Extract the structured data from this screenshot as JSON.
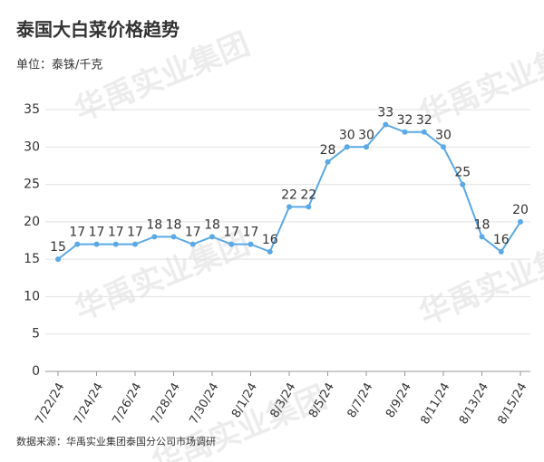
{
  "chart_data": {
    "type": "line",
    "title": "泰国大白菜价格趋势",
    "subtitle": "单位：泰铢/千克",
    "source": "数据来源：华禹实业集团泰国分公司市场调研",
    "watermark": "华禹实业集团",
    "categories": [
      "7/22/24",
      null,
      "7/24/24",
      null,
      "7/26/24",
      null,
      "7/28/24",
      null,
      "7/30/24",
      null,
      "8/1/24",
      null,
      "8/3/24",
      null,
      "8/5/24",
      null,
      "8/7/24",
      null,
      "8/9/24",
      null,
      "8/11/24",
      null,
      "8/13/24",
      null,
      "8/15/24"
    ],
    "values": [
      15,
      17,
      17,
      17,
      17,
      18,
      18,
      17,
      18,
      17,
      17,
      16,
      22,
      22,
      28,
      30,
      30,
      33,
      32,
      32,
      30,
      25,
      18,
      16,
      20
    ],
    "color": "#5aa9e6",
    "ylim": [
      0,
      35
    ],
    "yticks": [
      0,
      5,
      10,
      15,
      20,
      25,
      30,
      35
    ],
    "grid": true
  }
}
